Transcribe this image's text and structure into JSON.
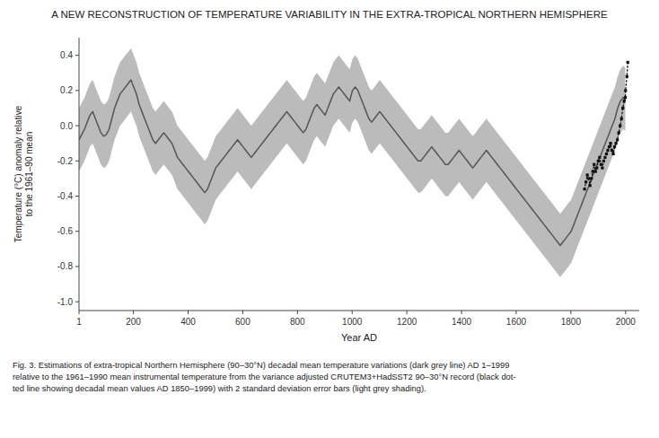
{
  "chart_data": {
    "type": "line",
    "title": "A NEW RECONSTRUCTION OF TEMPERATURE VARIABILITY IN THE EXTRA-TROPICAL NORTHERN HEMISPHERE",
    "xlabel": "Year AD",
    "ylabel": "Temperature (°C) anomaly relative\nto the 1961–90 mean",
    "caption": "Fig. 3. Estimations of extra-tropical Northern Hemisphere (90–30°N) decadal mean temperature variations (dark grey line) AD 1–1999\nrelative to the 1961–1990 mean instrumental temperature from the variance adjusted CRUTEM3+HadSST2 90–30°N record (black dot-\nted line showing decadal mean values AD 1850–1999) with 2 standard deviation error bars (light grey shading).",
    "xlim": [
      1,
      2050
    ],
    "ylim": [
      -1.05,
      0.5
    ],
    "xticks": [
      1,
      200,
      400,
      600,
      800,
      1000,
      1200,
      1400,
      1600,
      1800,
      2000
    ],
    "yticks": [
      {
        "value": -1.0,
        "label": "-1.0"
      },
      -0.8,
      -0.6,
      -0.4,
      -0.2,
      {
        "value": 0.0,
        "label": "0.0"
      },
      0.2,
      0.4
    ],
    "grid": false,
    "series": [
      {
        "type": "area",
        "color": "#bbbbbb",
        "x": [
          1,
          11,
          21,
          31,
          41,
          51,
          61,
          71,
          81,
          91,
          101,
          111,
          121,
          131,
          141,
          151,
          161,
          171,
          181,
          191,
          201,
          211,
          221,
          231,
          241,
          251,
          261,
          271,
          281,
          291,
          301,
          311,
          321,
          331,
          341,
          351,
          361,
          371,
          381,
          391,
          401,
          411,
          421,
          431,
          441,
          451,
          461,
          471,
          481,
          491,
          501,
          511,
          521,
          531,
          541,
          551,
          561,
          571,
          581,
          591,
          601,
          611,
          621,
          631,
          641,
          651,
          661,
          671,
          681,
          691,
          701,
          711,
          721,
          731,
          741,
          751,
          761,
          771,
          781,
          791,
          801,
          811,
          821,
          831,
          841,
          851,
          861,
          871,
          881,
          891,
          901,
          911,
          921,
          931,
          941,
          951,
          961,
          971,
          981,
          991,
          1001,
          1011,
          1021,
          1031,
          1041,
          1051,
          1061,
          1071,
          1081,
          1091,
          1101,
          1111,
          1121,
          1131,
          1141,
          1151,
          1161,
          1171,
          1181,
          1191,
          1201,
          1211,
          1221,
          1231,
          1241,
          1251,
          1261,
          1271,
          1281,
          1291,
          1301,
          1311,
          1321,
          1331,
          1341,
          1351,
          1361,
          1371,
          1381,
          1391,
          1401,
          1411,
          1421,
          1431,
          1441,
          1451,
          1461,
          1471,
          1481,
          1491,
          1501,
          1511,
          1521,
          1531,
          1541,
          1551,
          1561,
          1571,
          1581,
          1591,
          1601,
          1611,
          1621,
          1631,
          1641,
          1651,
          1661,
          1671,
          1681,
          1691,
          1701,
          1711,
          1721,
          1731,
          1741,
          1751,
          1761,
          1771,
          1781,
          1791,
          1801,
          1811,
          1821,
          1831,
          1841,
          1851,
          1861,
          1871,
          1881,
          1891,
          1901,
          1911,
          1921,
          1931,
          1941,
          1951,
          1961,
          1971,
          1981,
          1991,
          1999
        ],
        "upper": [
          0.1,
          0.13,
          0.16,
          0.2,
          0.24,
          0.26,
          0.22,
          0.18,
          0.14,
          0.12,
          0.13,
          0.16,
          0.22,
          0.28,
          0.32,
          0.36,
          0.38,
          0.4,
          0.42,
          0.44,
          0.4,
          0.36,
          0.3,
          0.26,
          0.22,
          0.18,
          0.14,
          0.1,
          0.08,
          0.1,
          0.12,
          0.14,
          0.12,
          0.1,
          0.08,
          0.04,
          0.0,
          -0.02,
          -0.04,
          -0.06,
          -0.08,
          -0.1,
          -0.12,
          -0.14,
          -0.16,
          -0.18,
          -0.2,
          -0.18,
          -0.14,
          -0.1,
          -0.06,
          -0.04,
          -0.02,
          0.0,
          0.02,
          0.04,
          0.06,
          0.08,
          0.1,
          0.08,
          0.06,
          0.04,
          0.02,
          0.0,
          0.02,
          0.04,
          0.06,
          0.08,
          0.1,
          0.12,
          0.14,
          0.16,
          0.18,
          0.2,
          0.22,
          0.24,
          0.26,
          0.24,
          0.22,
          0.2,
          0.18,
          0.16,
          0.14,
          0.16,
          0.2,
          0.24,
          0.28,
          0.3,
          0.28,
          0.26,
          0.24,
          0.28,
          0.32,
          0.36,
          0.38,
          0.4,
          0.38,
          0.36,
          0.34,
          0.32,
          0.38,
          0.4,
          0.38,
          0.34,
          0.3,
          0.26,
          0.22,
          0.2,
          0.22,
          0.24,
          0.26,
          0.24,
          0.22,
          0.2,
          0.18,
          0.16,
          0.14,
          0.12,
          0.1,
          0.08,
          0.06,
          0.04,
          0.02,
          0.0,
          -0.02,
          -0.02,
          0.0,
          0.02,
          0.04,
          0.06,
          0.04,
          0.02,
          0.0,
          -0.02,
          -0.04,
          -0.04,
          -0.02,
          0.0,
          0.02,
          0.04,
          0.02,
          0.0,
          -0.02,
          -0.04,
          -0.06,
          -0.04,
          -0.02,
          0.0,
          0.02,
          0.04,
          0.02,
          0.0,
          -0.02,
          -0.04,
          -0.06,
          -0.08,
          -0.1,
          -0.12,
          -0.14,
          -0.16,
          -0.18,
          -0.2,
          -0.22,
          -0.24,
          -0.26,
          -0.28,
          -0.3,
          -0.32,
          -0.34,
          -0.36,
          -0.38,
          -0.4,
          -0.42,
          -0.44,
          -0.46,
          -0.48,
          -0.5,
          -0.48,
          -0.46,
          -0.44,
          -0.42,
          -0.38,
          -0.34,
          -0.3,
          -0.26,
          -0.22,
          -0.18,
          -0.14,
          -0.1,
          -0.06,
          -0.02,
          0.02,
          0.06,
          0.1,
          0.14,
          0.18,
          0.22,
          0.28,
          0.32,
          0.34,
          0.33
        ],
        "lower": [
          -0.26,
          -0.23,
          -0.2,
          -0.16,
          -0.12,
          -0.1,
          -0.14,
          -0.18,
          -0.22,
          -0.24,
          -0.23,
          -0.2,
          -0.14,
          -0.08,
          -0.04,
          0.0,
          0.02,
          0.04,
          0.06,
          0.08,
          0.04,
          0.0,
          -0.06,
          -0.1,
          -0.14,
          -0.18,
          -0.22,
          -0.26,
          -0.28,
          -0.26,
          -0.24,
          -0.22,
          -0.24,
          -0.26,
          -0.28,
          -0.32,
          -0.36,
          -0.38,
          -0.4,
          -0.42,
          -0.44,
          -0.46,
          -0.48,
          -0.5,
          -0.52,
          -0.54,
          -0.56,
          -0.54,
          -0.5,
          -0.46,
          -0.42,
          -0.4,
          -0.38,
          -0.36,
          -0.34,
          -0.32,
          -0.3,
          -0.28,
          -0.26,
          -0.28,
          -0.3,
          -0.32,
          -0.34,
          -0.36,
          -0.34,
          -0.32,
          -0.3,
          -0.28,
          -0.26,
          -0.24,
          -0.22,
          -0.2,
          -0.18,
          -0.16,
          -0.14,
          -0.12,
          -0.1,
          -0.12,
          -0.14,
          -0.16,
          -0.18,
          -0.2,
          -0.22,
          -0.2,
          -0.16,
          -0.12,
          -0.08,
          -0.06,
          -0.08,
          -0.1,
          -0.12,
          -0.08,
          -0.04,
          0.0,
          0.02,
          0.04,
          0.02,
          0.0,
          -0.02,
          -0.04,
          0.02,
          0.04,
          0.02,
          -0.02,
          -0.06,
          -0.1,
          -0.14,
          -0.16,
          -0.14,
          -0.12,
          -0.1,
          -0.12,
          -0.14,
          -0.16,
          -0.18,
          -0.2,
          -0.22,
          -0.24,
          -0.26,
          -0.28,
          -0.3,
          -0.32,
          -0.34,
          -0.36,
          -0.38,
          -0.38,
          -0.36,
          -0.34,
          -0.32,
          -0.3,
          -0.32,
          -0.34,
          -0.36,
          -0.38,
          -0.4,
          -0.4,
          -0.38,
          -0.36,
          -0.34,
          -0.32,
          -0.34,
          -0.36,
          -0.38,
          -0.4,
          -0.42,
          -0.4,
          -0.38,
          -0.36,
          -0.34,
          -0.32,
          -0.34,
          -0.36,
          -0.38,
          -0.4,
          -0.42,
          -0.44,
          -0.46,
          -0.48,
          -0.5,
          -0.52,
          -0.54,
          -0.56,
          -0.58,
          -0.6,
          -0.62,
          -0.64,
          -0.66,
          -0.68,
          -0.7,
          -0.72,
          -0.74,
          -0.76,
          -0.78,
          -0.8,
          -0.82,
          -0.84,
          -0.86,
          -0.84,
          -0.82,
          -0.8,
          -0.78,
          -0.74,
          -0.7,
          -0.66,
          -0.62,
          -0.58,
          -0.54,
          -0.5,
          -0.46,
          -0.42,
          -0.38,
          -0.34,
          -0.3,
          -0.26,
          -0.22,
          -0.18,
          -0.14,
          -0.08,
          -0.04,
          -0.02,
          -0.03
        ]
      },
      {
        "type": "line",
        "color": "#555555",
        "x": [
          1,
          11,
          21,
          31,
          41,
          51,
          61,
          71,
          81,
          91,
          101,
          111,
          121,
          131,
          141,
          151,
          161,
          171,
          181,
          191,
          201,
          211,
          221,
          231,
          241,
          251,
          261,
          271,
          281,
          291,
          301,
          311,
          321,
          331,
          341,
          351,
          361,
          371,
          381,
          391,
          401,
          411,
          421,
          431,
          441,
          451,
          461,
          471,
          481,
          491,
          501,
          511,
          521,
          531,
          541,
          551,
          561,
          571,
          581,
          591,
          601,
          611,
          621,
          631,
          641,
          651,
          661,
          671,
          681,
          691,
          701,
          711,
          721,
          731,
          741,
          751,
          761,
          771,
          781,
          791,
          801,
          811,
          821,
          831,
          841,
          851,
          861,
          871,
          881,
          891,
          901,
          911,
          921,
          931,
          941,
          951,
          961,
          971,
          981,
          991,
          1001,
          1011,
          1021,
          1031,
          1041,
          1051,
          1061,
          1071,
          1081,
          1091,
          1101,
          1111,
          1121,
          1131,
          1141,
          1151,
          1161,
          1171,
          1181,
          1191,
          1201,
          1211,
          1221,
          1231,
          1241,
          1251,
          1261,
          1271,
          1281,
          1291,
          1301,
          1311,
          1321,
          1331,
          1341,
          1351,
          1361,
          1371,
          1381,
          1391,
          1401,
          1411,
          1421,
          1431,
          1441,
          1451,
          1461,
          1471,
          1481,
          1491,
          1501,
          1511,
          1521,
          1531,
          1541,
          1551,
          1561,
          1571,
          1581,
          1591,
          1601,
          1611,
          1621,
          1631,
          1641,
          1651,
          1661,
          1671,
          1681,
          1691,
          1701,
          1711,
          1721,
          1731,
          1741,
          1751,
          1761,
          1771,
          1781,
          1791,
          1801,
          1811,
          1821,
          1831,
          1841,
          1851,
          1861,
          1871,
          1881,
          1891,
          1901,
          1911,
          1921,
          1931,
          1941,
          1951,
          1961,
          1971,
          1981,
          1991,
          1999
        ],
        "values": [
          -0.08,
          -0.05,
          -0.02,
          0.02,
          0.06,
          0.08,
          0.04,
          0.0,
          -0.04,
          -0.06,
          -0.05,
          -0.02,
          0.04,
          0.1,
          0.14,
          0.18,
          0.2,
          0.22,
          0.24,
          0.26,
          0.22,
          0.18,
          0.12,
          0.08,
          0.04,
          0.0,
          -0.04,
          -0.08,
          -0.1,
          -0.08,
          -0.06,
          -0.04,
          -0.06,
          -0.08,
          -0.1,
          -0.14,
          -0.18,
          -0.2,
          -0.22,
          -0.24,
          -0.26,
          -0.28,
          -0.3,
          -0.32,
          -0.34,
          -0.36,
          -0.38,
          -0.36,
          -0.32,
          -0.28,
          -0.24,
          -0.22,
          -0.2,
          -0.18,
          -0.16,
          -0.14,
          -0.12,
          -0.1,
          -0.08,
          -0.1,
          -0.12,
          -0.14,
          -0.16,
          -0.18,
          -0.16,
          -0.14,
          -0.12,
          -0.1,
          -0.08,
          -0.06,
          -0.04,
          -0.02,
          0.0,
          0.02,
          0.04,
          0.06,
          0.08,
          0.06,
          0.04,
          0.02,
          0.0,
          -0.02,
          -0.04,
          -0.02,
          0.02,
          0.06,
          0.1,
          0.12,
          0.1,
          0.08,
          0.06,
          0.1,
          0.14,
          0.18,
          0.2,
          0.22,
          0.2,
          0.18,
          0.16,
          0.14,
          0.2,
          0.22,
          0.2,
          0.16,
          0.12,
          0.08,
          0.04,
          0.02,
          0.04,
          0.06,
          0.08,
          0.06,
          0.04,
          0.02,
          0.0,
          -0.02,
          -0.04,
          -0.06,
          -0.08,
          -0.1,
          -0.12,
          -0.14,
          -0.16,
          -0.18,
          -0.2,
          -0.2,
          -0.18,
          -0.16,
          -0.14,
          -0.12,
          -0.14,
          -0.16,
          -0.18,
          -0.2,
          -0.22,
          -0.22,
          -0.2,
          -0.18,
          -0.16,
          -0.14,
          -0.16,
          -0.18,
          -0.2,
          -0.22,
          -0.24,
          -0.22,
          -0.2,
          -0.18,
          -0.16,
          -0.14,
          -0.16,
          -0.18,
          -0.2,
          -0.22,
          -0.24,
          -0.26,
          -0.28,
          -0.3,
          -0.32,
          -0.34,
          -0.36,
          -0.38,
          -0.4,
          -0.42,
          -0.44,
          -0.46,
          -0.48,
          -0.5,
          -0.52,
          -0.54,
          -0.56,
          -0.58,
          -0.6,
          -0.62,
          -0.64,
          -0.66,
          -0.68,
          -0.66,
          -0.64,
          -0.62,
          -0.6,
          -0.56,
          -0.52,
          -0.48,
          -0.44,
          -0.4,
          -0.36,
          -0.32,
          -0.28,
          -0.24,
          -0.2,
          -0.16,
          -0.12,
          -0.08,
          -0.04,
          0.0,
          0.04,
          0.1,
          0.14,
          0.16,
          0.15
        ]
      },
      {
        "type": "line",
        "color": "#111111",
        "line_style": "dotted",
        "marker": "square",
        "x": [
          1850,
          1855,
          1860,
          1865,
          1870,
          1875,
          1880,
          1885,
          1890,
          1895,
          1900,
          1905,
          1910,
          1915,
          1920,
          1925,
          1930,
          1935,
          1940,
          1945,
          1950,
          1955,
          1960,
          1965,
          1970,
          1975,
          1980,
          1985,
          1990,
          1995,
          1999,
          2000,
          2005,
          2008
        ],
        "values": [
          -0.36,
          -0.32,
          -0.28,
          -0.3,
          -0.34,
          -0.3,
          -0.26,
          -0.22,
          -0.26,
          -0.24,
          -0.2,
          -0.18,
          -0.22,
          -0.24,
          -0.2,
          -0.18,
          -0.16,
          -0.14,
          -0.12,
          -0.1,
          -0.14,
          -0.16,
          -0.12,
          -0.1,
          -0.08,
          -0.04,
          0.0,
          0.04,
          0.1,
          0.14,
          0.16,
          0.2,
          0.28,
          0.36
        ]
      }
    ]
  }
}
